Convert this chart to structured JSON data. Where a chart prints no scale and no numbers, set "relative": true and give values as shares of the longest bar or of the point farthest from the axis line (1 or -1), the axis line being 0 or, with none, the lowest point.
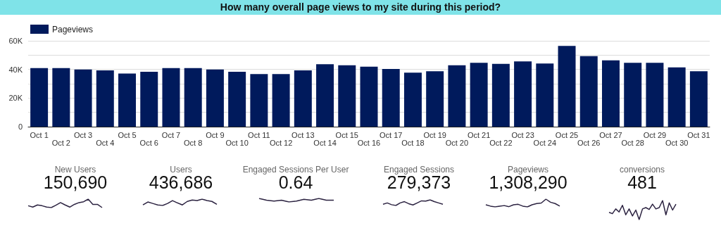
{
  "chart_data": [
    {
      "type": "bar",
      "title": "How many overall page views to my site during this period?",
      "categories": [
        "Oct 1",
        "Oct 2",
        "Oct 3",
        "Oct 4",
        "Oct 5",
        "Oct 6",
        "Oct 7",
        "Oct 8",
        "Oct 9",
        "Oct 10",
        "Oct 11",
        "Oct 12",
        "Oct 13",
        "Oct 14",
        "Oct 15",
        "Oct 16",
        "Oct 17",
        "Oct 18",
        "Oct 19",
        "Oct 20",
        "Oct 21",
        "Oct 22",
        "Oct 23",
        "Oct 24",
        "Oct 25",
        "Oct 26",
        "Oct 27",
        "Oct 28",
        "Oct 29",
        "Oct 30",
        "Oct 31"
      ],
      "series": [
        {
          "name": "Pageviews",
          "color": "#001a5c",
          "values": [
            41000,
            41000,
            40000,
            39400,
            37100,
            38400,
            41000,
            41000,
            40000,
            38400,
            36800,
            36800,
            39400,
            43700,
            42900,
            41900,
            40300,
            37700,
            38700,
            42900,
            44600,
            43900,
            45600,
            44200,
            56400,
            49300,
            46400,
            44600,
            44600,
            41400,
            38700
          ]
        }
      ],
      "ylim": [
        0,
        60000
      ],
      "yticks": [
        {
          "value": 0,
          "label": "0"
        },
        {
          "value": 10000,
          "label": null
        },
        {
          "value": 20000,
          "label": "20K"
        },
        {
          "value": 30000,
          "label": null
        },
        {
          "value": 40000,
          "label": "40K"
        },
        {
          "value": 50000,
          "label": null
        },
        {
          "value": 60000,
          "label": "60K"
        }
      ],
      "grid": "y",
      "legend": "top left"
    },
    {
      "type": "line",
      "title": "New Users",
      "annotations": [
        "150,690"
      ],
      "relative": true,
      "marker": "none",
      "color": "#2b2240",
      "categories": [
        null,
        null,
        null,
        null,
        null,
        null,
        null,
        null,
        null,
        null,
        null,
        null,
        null,
        null,
        null,
        null,
        null
      ],
      "values": [
        0.22,
        0.06,
        0.31,
        0.22,
        0.06,
        0,
        0.28,
        0.59,
        0.31,
        0.06,
        0.38,
        0.59,
        0.69,
        1,
        0.38,
        0.38,
        0
      ]
    },
    {
      "type": "line",
      "title": "Users",
      "annotations": [
        "436,686"
      ],
      "relative": true,
      "marker": "none",
      "color": "#2b2240",
      "categories": [
        null,
        null,
        null,
        null,
        null,
        null,
        null,
        null,
        null,
        null,
        null,
        null,
        null,
        null,
        null,
        null
      ],
      "values": [
        0.09,
        0.55,
        0.32,
        0.09,
        0,
        0.32,
        0.77,
        0.41,
        0.09,
        0.64,
        0.86,
        0.77,
        1,
        0.77,
        0.64,
        0.18
      ]
    },
    {
      "type": "line",
      "title": "Engaged Sessions Per User",
      "annotations": [
        "0.64"
      ],
      "relative": true,
      "marker": "none",
      "color": "#2b2240",
      "categories": [
        null,
        null,
        null,
        null,
        null,
        null,
        null,
        null,
        null,
        null,
        null
      ],
      "values": [
        1,
        0.5,
        0.25,
        0.5,
        0,
        0.25,
        0.75,
        0.5,
        1,
        0.5,
        0.5
      ]
    },
    {
      "type": "line",
      "title": "Engaged Sessions",
      "annotations": [
        "279,373"
      ],
      "relative": true,
      "marker": "none",
      "color": "#2b2240",
      "categories": [
        null,
        null,
        null,
        null,
        null,
        null,
        null,
        null,
        null,
        null,
        null,
        null,
        null,
        null,
        null
      ],
      "values": [
        0.23,
        0.45,
        0.14,
        0,
        0.45,
        0.68,
        0.32,
        0.09,
        0.45,
        0.82,
        0.77,
        1,
        0.68,
        0.45,
        0.23
      ]
    },
    {
      "type": "line",
      "title": "Pageviews",
      "annotations": [
        "1,308,290"
      ],
      "relative": true,
      "marker": "none",
      "color": "#2b2240",
      "categories": [
        null,
        null,
        null,
        null,
        null,
        null,
        null,
        null,
        null,
        null,
        null,
        null,
        null,
        null,
        null,
        null,
        null
      ],
      "values": [
        0.27,
        0.1,
        0,
        0.1,
        0.17,
        0.03,
        0.27,
        0.33,
        0.1,
        0,
        0.27,
        0.43,
        0.5,
        1,
        0.6,
        0.43,
        0.1
      ]
    },
    {
      "type": "line",
      "title": "conversions",
      "annotations": [
        "481"
      ],
      "relative": true,
      "marker": "none",
      "color": "#2b2240",
      "categories": [
        null,
        null,
        null,
        null,
        null,
        null,
        null,
        null,
        null,
        null,
        null,
        null,
        null,
        null,
        null,
        null,
        null,
        null,
        null,
        null,
        null
      ],
      "values": [
        0.38,
        0.31,
        0.56,
        0.4,
        0.75,
        0.25,
        0.56,
        0.19,
        0.5,
        0,
        0.56,
        0.63,
        0.53,
        0.81,
        0.56,
        0.63,
        1,
        0.25,
        0.88,
        0.5,
        0.81
      ]
    }
  ]
}
